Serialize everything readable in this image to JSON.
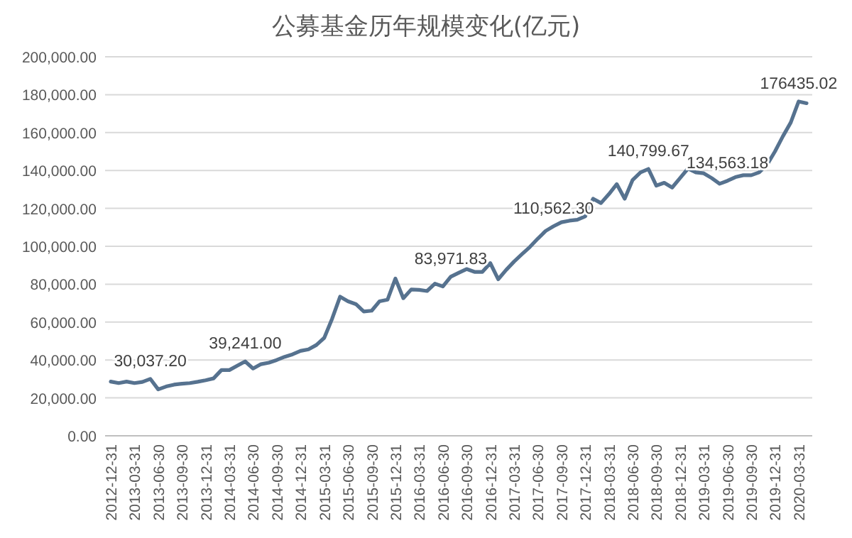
{
  "chart_data": {
    "type": "line",
    "title": "公募基金历年规模变化(亿元)",
    "categories": [
      "2012-12-31",
      null,
      null,
      "2013-03-31",
      null,
      null,
      "2013-06-30",
      null,
      null,
      "2013-09-30",
      null,
      null,
      "2013-12-31",
      null,
      null,
      "2014-03-31",
      null,
      null,
      "2014-06-30",
      null,
      null,
      "2014-09-30",
      null,
      null,
      "2014-12-31",
      null,
      null,
      "2015-03-31",
      null,
      null,
      "2015-06-30",
      null,
      null,
      "2015-09-30",
      null,
      null,
      "2015-12-31",
      null,
      null,
      "2016-03-31",
      null,
      null,
      "2016-06-30",
      null,
      null,
      "2016-09-30",
      null,
      null,
      "2016-12-31",
      null,
      null,
      "2017-03-31",
      null,
      null,
      "2017-06-30",
      null,
      null,
      "2017-09-30",
      null,
      null,
      "2017-12-31",
      null,
      null,
      "2018-03-31",
      null,
      null,
      "2018-06-30",
      null,
      null,
      "2018-09-30",
      null,
      null,
      "2018-12-31",
      null,
      null,
      "2019-03-31",
      null,
      null,
      "2019-06-30",
      null,
      null,
      "2019-09-30",
      null,
      null,
      "2019-12-31",
      null,
      null,
      "2020-03-31",
      null
    ],
    "series": [
      {
        "color": "#56728f",
        "values": [
          28600,
          27800,
          28600,
          27800,
          28400,
          30037.2,
          24500,
          26000,
          27000,
          27500,
          27800,
          28500,
          29300,
          30300,
          34700,
          34700,
          37000,
          39241,
          35500,
          37800,
          38600,
          40000,
          41700,
          43000,
          44800,
          45600,
          47900,
          51700,
          61800,
          73400,
          71000,
          69500,
          65600,
          66000,
          71000,
          71800,
          83000,
          72600,
          77200,
          77000,
          76400,
          80300,
          78800,
          83971.83,
          86000,
          88000,
          86500,
          86500,
          91100,
          82600,
          87500,
          91900,
          95800,
          99600,
          104000,
          108100,
          110562.3,
          112700,
          113500,
          114000,
          115800,
          125100,
          122800,
          127500,
          132800,
          125100,
          135000,
          139000,
          140799.67,
          132000,
          133500,
          131000,
          136000,
          141000,
          139000,
          138500,
          136000,
          133000,
          134563.18,
          136500,
          137500,
          137500,
          139000,
          143000,
          150000,
          158000,
          165300,
          176435.02,
          175500
        ],
        "value_labels": [
          null,
          null,
          null,
          null,
          null,
          "30,037.20",
          null,
          null,
          null,
          null,
          null,
          null,
          null,
          null,
          null,
          null,
          null,
          "39,241.00",
          null,
          null,
          null,
          null,
          null,
          null,
          null,
          null,
          null,
          null,
          null,
          null,
          null,
          null,
          null,
          null,
          null,
          null,
          null,
          null,
          null,
          null,
          null,
          null,
          null,
          "83,971.83",
          null,
          null,
          null,
          null,
          null,
          null,
          null,
          null,
          null,
          null,
          null,
          null,
          "110,562.30",
          null,
          null,
          null,
          null,
          null,
          null,
          null,
          null,
          null,
          null,
          null,
          "140,799.67",
          null,
          null,
          null,
          null,
          null,
          null,
          null,
          null,
          null,
          "134,563.18",
          null,
          null,
          null,
          null,
          null,
          null,
          null,
          null,
          "176435.02",
          null
        ]
      }
    ],
    "ylim": [
      0,
      200000
    ],
    "yticks": [
      {
        "value": 0,
        "label": "0.00"
      },
      {
        "value": 20000,
        "label": "20,000.00"
      },
      {
        "value": 40000,
        "label": "40,000.00"
      },
      {
        "value": 60000,
        "label": "60,000.00"
      },
      {
        "value": 80000,
        "label": "80,000.00"
      },
      {
        "value": 100000,
        "label": "100,000.00"
      },
      {
        "value": 120000,
        "label": "120,000.00"
      },
      {
        "value": 140000,
        "label": "140,000.00"
      },
      {
        "value": 160000,
        "label": "160,000.00"
      },
      {
        "value": 180000,
        "label": "180,000.00"
      },
      {
        "value": 200000,
        "label": "200,000.00"
      }
    ],
    "grid": "y",
    "marker": "none",
    "line_style": "solid"
  }
}
